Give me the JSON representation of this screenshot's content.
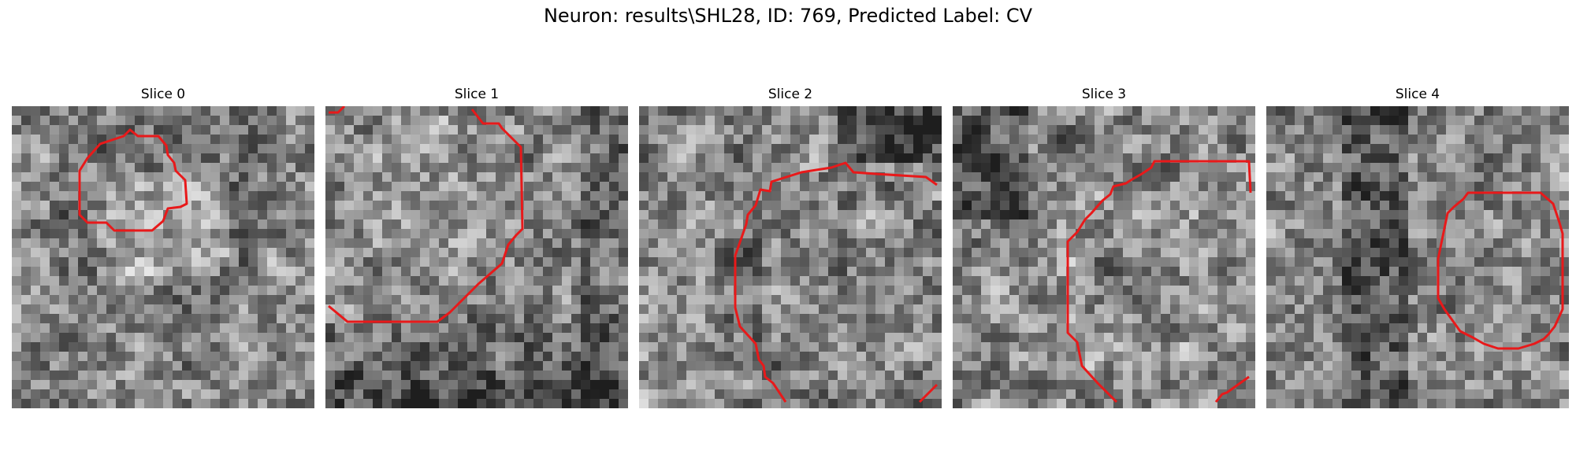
{
  "figure": {
    "title": "Neuron: results\\SHL28, ID: 769, Predicted Label: CV",
    "outline_color": "#e8191a"
  },
  "panels": [
    {
      "title": "Slice 0",
      "seed": 11,
      "bias": 0.0,
      "outline": "closed-small"
    },
    {
      "title": "Slice 1",
      "seed": 23,
      "bias": 0.0,
      "outline": "open-large-top"
    },
    {
      "title": "Slice 2",
      "seed": 37,
      "bias": 0.0,
      "outline": "open-arc-left"
    },
    {
      "title": "Slice 3",
      "seed": 41,
      "bias": 0.0,
      "outline": "open-arc-center"
    },
    {
      "title": "Slice 4",
      "seed": 53,
      "bias": 0.0,
      "outline": "closed-octagon"
    }
  ]
}
